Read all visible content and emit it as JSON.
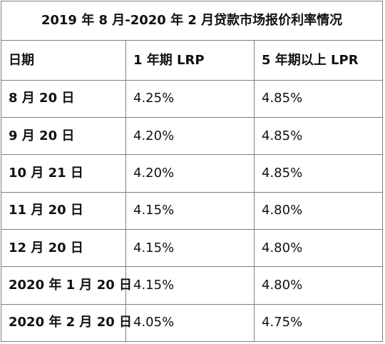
{
  "table": {
    "title": "2019 年 8 月-2020 年 2 月贷款市场报价利率情况",
    "headers": [
      "日期",
      "1 年期 LRP",
      "5 年期以上 LPR"
    ],
    "rows": [
      {
        "date": "8 月 20 日",
        "one_year": "4.25%",
        "five_year": "4.85%"
      },
      {
        "date": "9 月 20 日",
        "one_year": "4.20%",
        "five_year": "4.85%"
      },
      {
        "date": "10 月 21 日",
        "one_year": "4.20%",
        "five_year": "4.85%"
      },
      {
        "date": "11 月 20 日",
        "one_year": "4.15%",
        "five_year": "4.80%"
      },
      {
        "date": "12 月 20 日",
        "one_year": "4.15%",
        "five_year": "4.80%"
      },
      {
        "date": "2020 年 1 月 20 日",
        "one_year": "4.15%",
        "five_year": "4.80%"
      },
      {
        "date": "2020 年 2 月 20 日",
        "one_year": "4.05%",
        "five_year": "4.75%"
      }
    ]
  }
}
